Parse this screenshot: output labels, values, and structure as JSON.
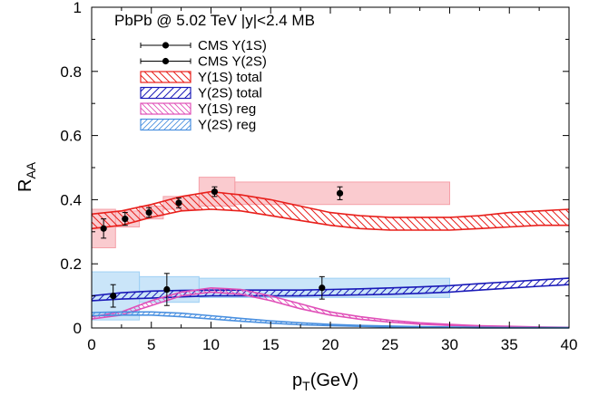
{
  "chart_data": {
    "type": "line",
    "title": "PbPb @ 5.02 TeV |y|<2.4 MB",
    "xlabel": "p",
    "xlabel_sub": "T",
    "xlabel_unit": "(GeV)",
    "ylabel": "R",
    "ylabel_sub": "AA",
    "xlim": [
      0,
      40
    ],
    "ylim": [
      0,
      1
    ],
    "x_ticks": [
      0,
      5,
      10,
      15,
      20,
      25,
      30,
      35,
      40
    ],
    "y_ticks": [
      0,
      0.2,
      0.4,
      0.6,
      0.8,
      1
    ],
    "y_tick_labels": [
      "0",
      "0.2",
      "0.4",
      "0.6",
      "0.8",
      "1"
    ],
    "legend": {
      "placement": "top-left",
      "entries": [
        {
          "label": "CMS Υ(1S)",
          "kind": "points",
          "color": "#000000"
        },
        {
          "label": "CMS Υ(2S)",
          "kind": "points",
          "color": "#000000"
        },
        {
          "label": "Υ(1S) total",
          "kind": "band",
          "color": "#e8201c",
          "hatch": "back"
        },
        {
          "label": "Υ(2S) total",
          "kind": "band",
          "color": "#1a1ab8",
          "hatch": "fwd"
        },
        {
          "label": "Υ(1S) reg",
          "kind": "band",
          "color": "#e050b8",
          "hatch": "back"
        },
        {
          "label": "Υ(2S) reg",
          "kind": "band",
          "color": "#4a90e0",
          "hatch": "fwd"
        }
      ]
    },
    "data_points": [
      {
        "name": "CMS Υ(1S)",
        "color": "#000000",
        "syst_color": "#f5a0a8",
        "points": [
          {
            "x": 1.0,
            "y": 0.31,
            "err": 0.03,
            "xlo": 0,
            "xhi": 2,
            "syst": 0.06
          },
          {
            "x": 2.8,
            "y": 0.34,
            "err": 0.02,
            "xlo": 2,
            "xhi": 4,
            "syst": 0.025
          },
          {
            "x": 4.8,
            "y": 0.36,
            "err": 0.015,
            "xlo": 4,
            "xhi": 6,
            "syst": 0.02
          },
          {
            "x": 7.3,
            "y": 0.39,
            "err": 0.015,
            "xlo": 6,
            "xhi": 9,
            "syst": 0.02
          },
          {
            "x": 10.3,
            "y": 0.425,
            "err": 0.015,
            "xlo": 9,
            "xhi": 12,
            "syst": 0.045
          },
          {
            "x": 20.8,
            "y": 0.42,
            "err": 0.02,
            "xlo": 12,
            "xhi": 30,
            "syst": 0.035
          }
        ]
      },
      {
        "name": "CMS Υ(2S)",
        "color": "#000000",
        "syst_color": "#9fd0f4",
        "points": [
          {
            "x": 1.8,
            "y": 0.1,
            "err": 0.035,
            "xlo": 0,
            "xhi": 4,
            "syst": 0.075
          },
          {
            "x": 6.3,
            "y": 0.12,
            "err": 0.05,
            "xlo": 4,
            "xhi": 9,
            "syst": 0.04
          },
          {
            "x": 19.3,
            "y": 0.125,
            "err": 0.035,
            "xlo": 9,
            "xhi": 30,
            "syst": 0.03
          }
        ]
      }
    ],
    "bands": [
      {
        "name": "Υ(1S) total",
        "color": "#e8201c",
        "hatch": "back",
        "x": [
          0,
          2.5,
          5,
          7.5,
          10,
          12.5,
          15,
          17.5,
          20,
          22.5,
          25,
          27.5,
          30,
          32.5,
          35,
          37.5,
          40
        ],
        "lower": [
          0.31,
          0.32,
          0.345,
          0.365,
          0.37,
          0.365,
          0.35,
          0.335,
          0.32,
          0.31,
          0.305,
          0.305,
          0.305,
          0.31,
          0.315,
          0.32,
          0.32
        ],
        "upper": [
          0.355,
          0.365,
          0.385,
          0.41,
          0.425,
          0.415,
          0.4,
          0.38,
          0.36,
          0.35,
          0.345,
          0.345,
          0.345,
          0.35,
          0.36,
          0.365,
          0.37
        ]
      },
      {
        "name": "Υ(2S) total",
        "color": "#1a1ab8",
        "hatch": "fwd",
        "x": [
          0,
          2.5,
          5,
          7.5,
          10,
          12.5,
          15,
          17.5,
          20,
          22.5,
          25,
          27.5,
          30,
          32.5,
          35,
          37.5,
          40
        ],
        "lower": [
          0.085,
          0.09,
          0.093,
          0.097,
          0.1,
          0.1,
          0.1,
          0.1,
          0.102,
          0.103,
          0.105,
          0.108,
          0.112,
          0.118,
          0.124,
          0.13,
          0.135
        ],
        "upper": [
          0.1,
          0.11,
          0.115,
          0.117,
          0.118,
          0.118,
          0.118,
          0.118,
          0.12,
          0.122,
          0.125,
          0.128,
          0.132,
          0.138,
          0.144,
          0.15,
          0.155
        ]
      },
      {
        "name": "Υ(1S) reg",
        "color": "#e050b8",
        "hatch": "back",
        "x": [
          0,
          2.5,
          5,
          7.5,
          10,
          12.5,
          15,
          17.5,
          20,
          22.5,
          25,
          27.5,
          30,
          32.5,
          35,
          37.5,
          40
        ],
        "lower": [
          0.028,
          0.04,
          0.07,
          0.1,
          0.112,
          0.105,
          0.085,
          0.06,
          0.04,
          0.027,
          0.018,
          0.012,
          0.008,
          0.005,
          0.003,
          0.002,
          0.001
        ],
        "upper": [
          0.035,
          0.05,
          0.085,
          0.112,
          0.125,
          0.12,
          0.1,
          0.075,
          0.05,
          0.035,
          0.024,
          0.016,
          0.011,
          0.007,
          0.005,
          0.003,
          0.002
        ]
      },
      {
        "name": "Υ(2S) reg",
        "color": "#4a90e0",
        "hatch": "fwd",
        "x": [
          0,
          2.5,
          5,
          7.5,
          10,
          12.5,
          15,
          17.5,
          20,
          22.5,
          25,
          27.5,
          30,
          32.5,
          35,
          37.5,
          40
        ],
        "lower": [
          0.038,
          0.04,
          0.04,
          0.035,
          0.028,
          0.021,
          0.015,
          0.01,
          0.007,
          0.005,
          0.003,
          0.002,
          0.001,
          0.0,
          0.0,
          0.0,
          0.0
        ],
        "upper": [
          0.048,
          0.05,
          0.05,
          0.046,
          0.038,
          0.03,
          0.022,
          0.016,
          0.011,
          0.008,
          0.006,
          0.004,
          0.003,
          0.002,
          0.001,
          0.001,
          0.001
        ]
      }
    ]
  }
}
